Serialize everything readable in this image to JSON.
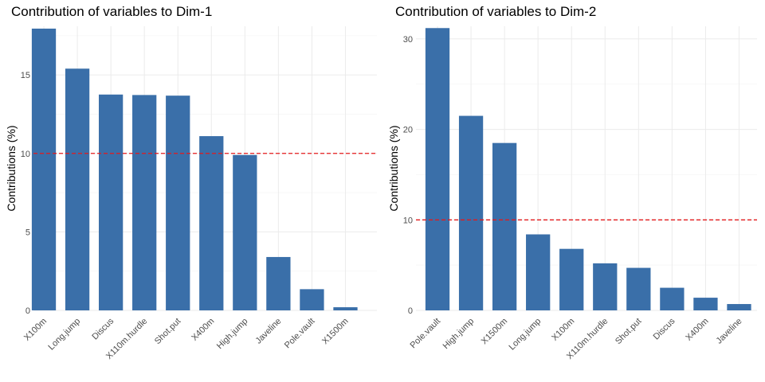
{
  "style": {
    "bar_color": "#3a6fa9",
    "ref_line_color": "#e31a1c",
    "background": "#ffffff"
  },
  "chart_data": [
    {
      "type": "bar",
      "title": "Contribution of variables to Dim-1",
      "ylabel": "Contributions (%)",
      "xlabel": "",
      "categories": [
        "X100m",
        "Long.jump",
        "Discus",
        "X110m.hurdle",
        "Shot.put",
        "X400m",
        "High.jump",
        "Javeline",
        "Pole.vault",
        "X1500m"
      ],
      "values": [
        17.95,
        15.4,
        13.75,
        13.72,
        13.68,
        11.1,
        9.9,
        3.4,
        1.35,
        0.2
      ],
      "ylim": [
        0,
        18.1
      ],
      "yticks": [
        0,
        5,
        10,
        15
      ],
      "reference_line": 10,
      "grid": true,
      "legend": "none"
    },
    {
      "type": "bar",
      "title": "Contribution of variables to Dim-2",
      "ylabel": "Contributions (%)",
      "xlabel": "",
      "categories": [
        "Pole.vault",
        "High.jump",
        "X1500m",
        "Long.jump",
        "X100m",
        "X110m.hurdle",
        "Shot.put",
        "Discus",
        "X400m",
        "Javeline"
      ],
      "values": [
        31.2,
        21.5,
        18.5,
        8.4,
        6.8,
        5.2,
        4.7,
        2.5,
        1.4,
        0.7
      ],
      "ylim": [
        0,
        31.4
      ],
      "yticks": [
        0,
        10,
        20,
        30
      ],
      "reference_line": 10,
      "grid": true,
      "legend": "none"
    }
  ]
}
